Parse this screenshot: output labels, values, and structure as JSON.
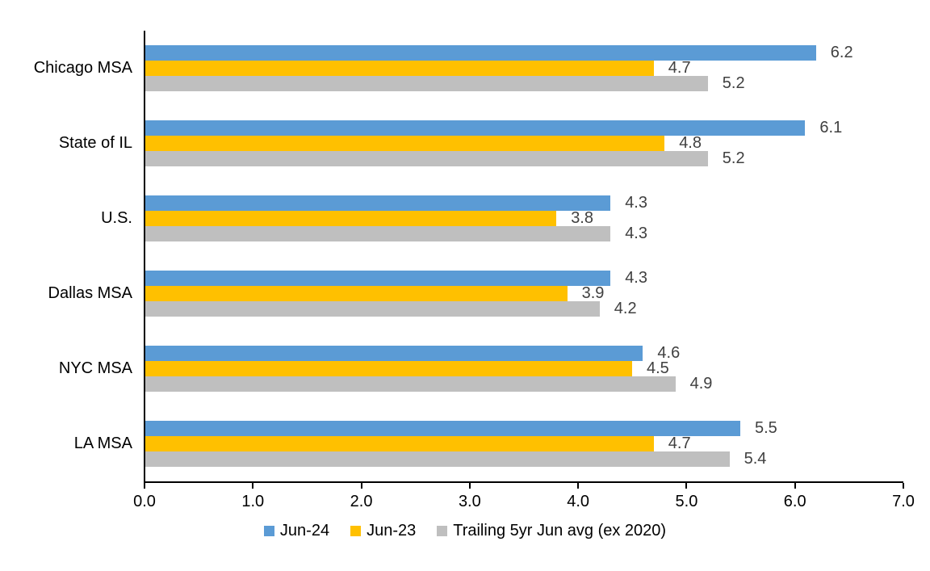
{
  "chart_data": {
    "type": "bar",
    "orientation": "horizontal",
    "title": "",
    "xlabel": "",
    "ylabel": "",
    "categories": [
      "Chicago MSA",
      "State of IL",
      "U.S.",
      "Dallas MSA",
      "NYC MSA",
      "LA MSA"
    ],
    "series": [
      {
        "name": "Jun-24",
        "color": "#5B9BD5",
        "values": [
          6.2,
          6.1,
          4.3,
          4.3,
          4.6,
          5.5
        ]
      },
      {
        "name": "Jun-23",
        "color": "#FFC000",
        "values": [
          4.7,
          4.8,
          3.8,
          3.9,
          4.5,
          4.7
        ]
      },
      {
        "name": "Trailing 5yr Jun avg (ex 2020)",
        "color": "#BFBFBF",
        "values": [
          5.2,
          5.2,
          4.3,
          4.2,
          4.9,
          5.4
        ]
      }
    ],
    "xlim": [
      0,
      7
    ],
    "xticks": [
      "0.0",
      "1.0",
      "2.0",
      "3.0",
      "4.0",
      "5.0",
      "6.0",
      "7.0"
    ],
    "grid": false,
    "data_labels": true,
    "data_label_color": "#404040",
    "axis_color": "#000000",
    "legend_position": "bottom"
  }
}
